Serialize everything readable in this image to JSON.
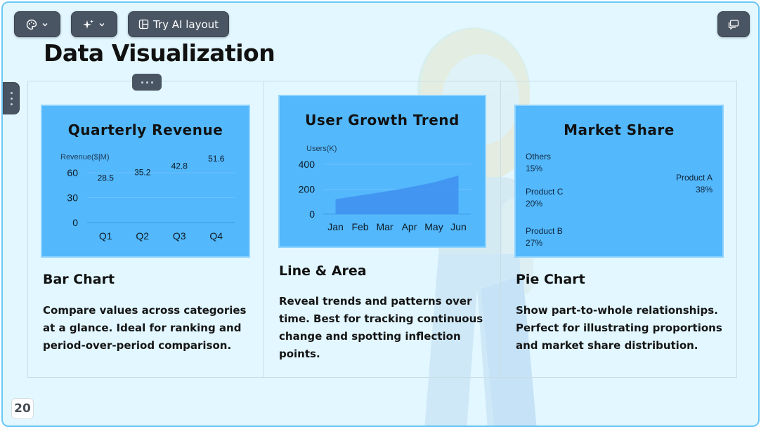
{
  "toolbar": {
    "theme_icon": "palette-icon",
    "magic_icon": "sparkle-icon",
    "ai_layout_label": "Try AI layout",
    "ai_layout_icon": "layout-icon",
    "comment_icon": "comment-icon"
  },
  "slide": {
    "title": "Data Visualization",
    "page_number": "20"
  },
  "cards": [
    {
      "heading": "Bar Chart",
      "description": "Compare values across categories at a glance. Ideal for ranking and period-over-period comparison."
    },
    {
      "heading": "Line & Area",
      "description": "Reveal trends and patterns over time. Best for tracking continuous change and spotting inflection points."
    },
    {
      "heading": "Pie Chart",
      "description": "Show part-to-whole relationships. Perfect for illustrating proportions and market share distribution."
    }
  ],
  "chart_data": [
    {
      "type": "bar",
      "title": "Quarterly Revenue",
      "ylabel": "Revenue($|M)",
      "categories": [
        "Q1",
        "Q2",
        "Q3",
        "Q4"
      ],
      "values": [
        28.5,
        35.2,
        42.8,
        51.6
      ],
      "yticks": [
        0,
        30,
        60
      ],
      "ylim": [
        0,
        60
      ],
      "data_labels": [
        "28.5",
        "35.2",
        "42.8",
        "51.6"
      ]
    },
    {
      "type": "area",
      "title": "User Growth Trend",
      "ylabel": "Users(K)",
      "categories": [
        "Jan",
        "Feb",
        "Mar",
        "Apr",
        "May",
        "Jun"
      ],
      "values": [
        120,
        150,
        180,
        215,
        255,
        310
      ],
      "yticks": [
        0,
        200,
        400
      ],
      "ylim": [
        0,
        400
      ]
    },
    {
      "type": "pie",
      "title": "Market Share",
      "slices": [
        {
          "name": "Product A",
          "pct": "38%",
          "value": 38
        },
        {
          "name": "Product B",
          "pct": "27%",
          "value": 27
        },
        {
          "name": "Product C",
          "pct": "20%",
          "value": 20
        },
        {
          "name": "Others",
          "pct": "15%",
          "value": 15
        }
      ]
    }
  ],
  "colors": {
    "slide_bg": "#e2f7ff",
    "chart_bg": "#53b8fc",
    "area_fill": "#3f8ff0",
    "toolbar_bg": "#4a5563"
  }
}
